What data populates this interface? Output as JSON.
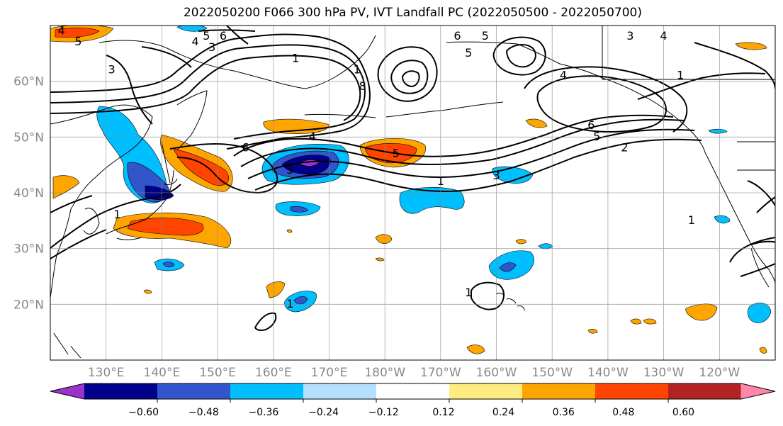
{
  "title": "2022050200 F066 300 hPa PV, IVT Landfall PC (2022050500 - 2022050700)",
  "lat_labels": [
    "60°N",
    "50°N",
    "40°N",
    "30°N",
    "20°N"
  ],
  "lon_labels": [
    "130°E",
    "140°E",
    "150°E",
    "160°E",
    "170°E",
    "180°W",
    "170°W",
    "160°W",
    "150°W",
    "140°W",
    "130°W",
    "120°W"
  ],
  "colorbar": {
    "colors": [
      "#9933cc",
      "#00008b",
      "#3355cc",
      "#00bfff",
      "#b3e0ff",
      "#ffffff",
      "#ffec80",
      "#ffa500",
      "#ff4500",
      "#b22222",
      "#ff88aa"
    ],
    "tick_labels": [
      "−0.60",
      "−0.48",
      "−0.36",
      "−0.24",
      "−0.12",
      "0.12",
      "0.24",
      "0.36",
      "0.48",
      "0.60"
    ]
  },
  "contour_labels": [
    {
      "text": "6",
      "lon": 151,
      "lat": 68
    },
    {
      "text": "5",
      "lon": 148,
      "lat": 68
    },
    {
      "text": "4",
      "lon": 146,
      "lat": 67
    },
    {
      "text": "3",
      "lon": 149,
      "lat": 66
    },
    {
      "text": "4",
      "lon": 122,
      "lat": 69
    },
    {
      "text": "5",
      "lon": 125,
      "lat": 67
    },
    {
      "text": "3",
      "lon": 131,
      "lat": 62
    },
    {
      "text": "1",
      "lon": 164,
      "lat": 64
    },
    {
      "text": "1",
      "lon": 175,
      "lat": 62
    },
    {
      "text": "8",
      "lon": 176,
      "lat": 59
    },
    {
      "text": "6",
      "lon": 193,
      "lat": 68
    },
    {
      "text": "5",
      "lon": 198,
      "lat": 68
    },
    {
      "text": "5",
      "lon": 195,
      "lat": 65
    },
    {
      "text": "4",
      "lon": 212,
      "lat": 61
    },
    {
      "text": "3",
      "lon": 224,
      "lat": 68
    },
    {
      "text": "4",
      "lon": 230,
      "lat": 68
    },
    {
      "text": "1",
      "lon": 233,
      "lat": 61
    },
    {
      "text": "4",
      "lon": 167,
      "lat": 50
    },
    {
      "text": "6",
      "lon": 155,
      "lat": 48
    },
    {
      "text": "5",
      "lon": 163,
      "lat": 44
    },
    {
      "text": "5",
      "lon": 182,
      "lat": 47
    },
    {
      "text": "1",
      "lon": 190,
      "lat": 42
    },
    {
      "text": "3",
      "lon": 200,
      "lat": 43
    },
    {
      "text": "6",
      "lon": 217,
      "lat": 52
    },
    {
      "text": "5",
      "lon": 218,
      "lat": 50
    },
    {
      "text": "2",
      "lon": 223,
      "lat": 48
    },
    {
      "text": "1",
      "lon": 132,
      "lat": 36
    },
    {
      "text": "1",
      "lon": 163,
      "lat": 20
    },
    {
      "text": "1",
      "lon": 195,
      "lat": 22
    },
    {
      "text": "1",
      "lon": 235,
      "lat": 35
    }
  ]
}
